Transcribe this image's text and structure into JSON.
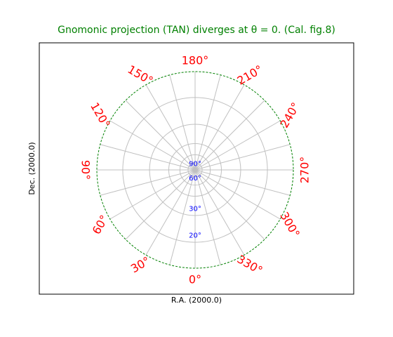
{
  "chart_data": {
    "type": "polar-projection-graticule",
    "title": "Gnomonic projection (TAN) diverges at θ = 0. (Cal. fig.8)",
    "xlabel": "R.A. (2000.0)",
    "ylabel": "Dec. (2000.0)",
    "ra_ticks": [
      {
        "deg": 0,
        "label": "0°"
      },
      {
        "deg": 30,
        "label": "30°"
      },
      {
        "deg": 60,
        "label": "60°"
      },
      {
        "deg": 90,
        "label": "90°"
      },
      {
        "deg": 120,
        "label": "120°"
      },
      {
        "deg": 150,
        "label": "150°"
      },
      {
        "deg": 180,
        "label": "180°"
      },
      {
        "deg": 210,
        "label": "210°"
      },
      {
        "deg": 240,
        "label": "240°"
      },
      {
        "deg": 270,
        "label": "270°"
      },
      {
        "deg": 300,
        "label": "300°"
      },
      {
        "deg": 330,
        "label": "330°"
      }
    ],
    "meridian_step_deg": 15,
    "dec_ticks": [
      {
        "deg": 90,
        "label": "90°"
      },
      {
        "deg": 60,
        "label": "60°"
      },
      {
        "deg": 30,
        "label": "30°"
      },
      {
        "deg": 20,
        "label": "20°"
      }
    ],
    "parallels_deg": [
      75,
      60,
      45,
      30,
      20
    ],
    "projection_boundary_dec_deg": 15,
    "colors": {
      "title": "#008000",
      "graticule": "#c0c0c0",
      "ra_labels": "#ff0000",
      "dec_labels": "#0000ff",
      "boundary": "#008000",
      "frame": "#000000"
    }
  }
}
